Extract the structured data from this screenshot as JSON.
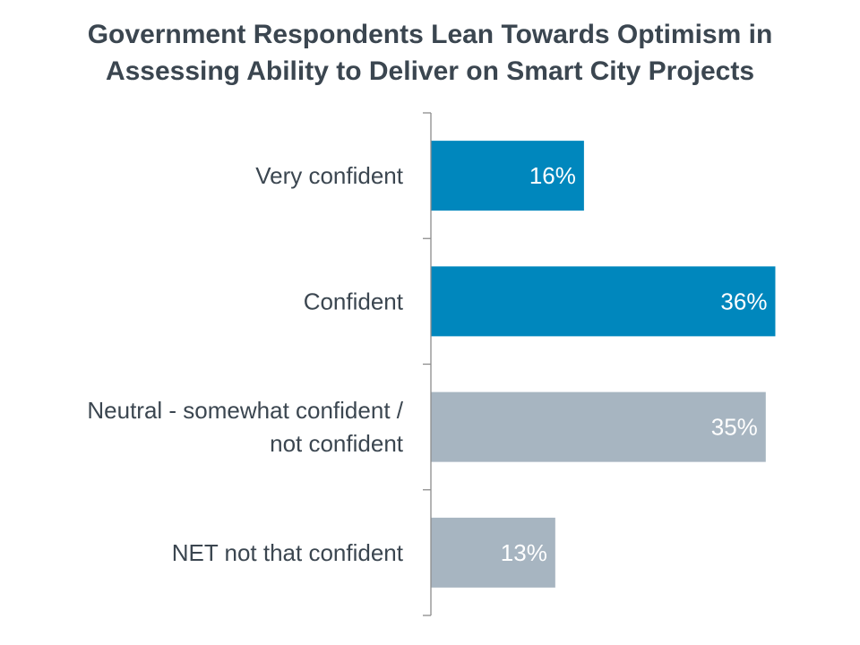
{
  "title_lines": [
    "Government Respondents Lean Towards Optimism in",
    "Assessing Ability to Deliver on Smart City Projects"
  ],
  "chart_data": {
    "type": "bar",
    "orientation": "horizontal",
    "title": "Government Respondents Lean Towards Optimism in Assessing Ability to Deliver on Smart City Projects",
    "categories": [
      [
        "Very confident"
      ],
      [
        "Confident"
      ],
      [
        "Neutral - somewhat confident /",
        "not confident"
      ],
      [
        "NET not that confident"
      ]
    ],
    "values": [
      16,
      36,
      35,
      13
    ],
    "value_labels": [
      "16%",
      "36%",
      "35%",
      "13%"
    ],
    "unit": "%",
    "xlim": [
      0,
      40
    ],
    "colors": [
      "#0087bd",
      "#0087bd",
      "#a7b5c1",
      "#a7b5c1"
    ],
    "axis_color": "#8c8c8c",
    "grid": false,
    "legend": "none"
  }
}
